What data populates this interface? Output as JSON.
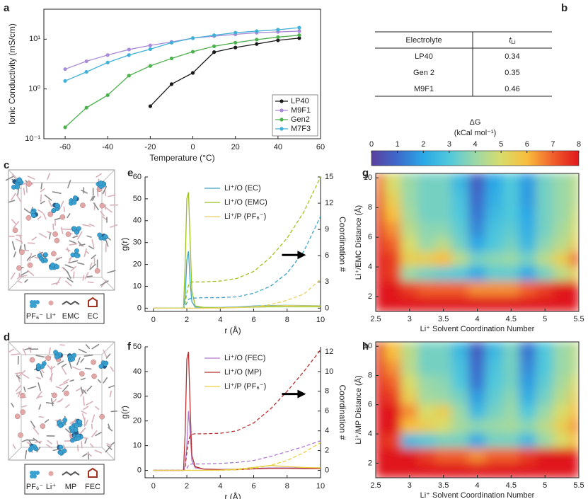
{
  "chart_data": [
    {
      "type": "line",
      "panel_label": "a",
      "xlabel": "Temperature (°C)",
      "ylabel": "Ionic Conductivity (mS/cm)",
      "x": [
        -60,
        -50,
        -40,
        -30,
        -20,
        -10,
        0,
        10,
        20,
        30,
        40,
        50
      ],
      "xlim": [
        -70,
        60
      ],
      "xticks": [
        -60,
        -40,
        -20,
        0,
        20,
        40,
        60
      ],
      "yscale": "log",
      "ylim": [
        0.1,
        40
      ],
      "yticks": [
        {
          "value": 0.1,
          "label": "10⁻¹"
        },
        {
          "value": 1,
          "label": "10⁰"
        },
        {
          "value": 10,
          "label": "10¹"
        }
      ],
      "markers": true,
      "legend": "lower right",
      "series": [
        {
          "name": "LP40",
          "color": "#1a1a1a",
          "values": [
            null,
            null,
            null,
            null,
            0.45,
            1.25,
            2.1,
            5.5,
            6.8,
            8,
            9.5,
            10.5
          ]
        },
        {
          "name": "M9F1",
          "color": "#a98ad8",
          "values": [
            2.5,
            3.6,
            4.8,
            6.2,
            7.5,
            8.8,
            10.5,
            11.5,
            12.5,
            13.5,
            14,
            14.5
          ]
        },
        {
          "name": "Gen2",
          "color": "#4cb04c",
          "values": [
            0.17,
            0.42,
            0.75,
            1.85,
            2.9,
            4.1,
            5.6,
            7.2,
            8.5,
            9.8,
            11,
            12
          ]
        },
        {
          "name": "M7F3",
          "color": "#3fb0d8",
          "values": [
            1.45,
            2.2,
            3.4,
            4.8,
            6.3,
            8.5,
            10.5,
            12,
            13.5,
            14.5,
            15.5,
            17
          ]
        }
      ]
    },
    {
      "type": "line",
      "panel_label": "e",
      "xlabel": "r (Å)",
      "ylabel": "g(r)",
      "y2label": "Coordination #",
      "x": [
        0,
        1,
        1.8,
        1.9,
        2,
        2.1,
        2.2,
        2.3,
        2.5,
        3,
        4,
        5,
        6,
        7,
        8,
        9,
        10
      ],
      "xlim": [
        -0.5,
        10
      ],
      "xticks": [
        0,
        2,
        4,
        6,
        8,
        10
      ],
      "ylim": [
        -1.5,
        60
      ],
      "yticks": [
        0,
        10,
        20,
        30,
        40,
        50,
        60
      ],
      "y2lim": [
        -0.375,
        15
      ],
      "y2ticks": [
        0,
        3,
        6,
        9,
        12,
        15
      ],
      "legend": "upper center",
      "series": [
        {
          "name": "Li⁺/O (EC)",
          "color": "#3ba3c4",
          "values": [
            0,
            0,
            0,
            5,
            22,
            26,
            12,
            3,
            0.5,
            0.3,
            0.3,
            0.5,
            1,
            1.2,
            1.3,
            1.2,
            1.1
          ]
        },
        {
          "name": "Li⁺/O (EMC)",
          "color": "#9cc21e",
          "values": [
            0,
            0,
            0,
            20,
            50,
            53,
            30,
            8,
            1,
            0.3,
            0.2,
            0.3,
            0.5,
            0.6,
            0.6,
            0.6,
            0.6
          ]
        },
        {
          "name": "Li⁺/P (PF₆⁻)",
          "color": "#e8d060",
          "values": [
            0,
            0,
            0,
            0,
            0,
            0,
            0,
            0,
            0,
            0,
            0.1,
            0.3,
            0.7,
            1,
            1.2,
            1.1,
            1
          ]
        },
        {
          "color": "#3ba3c4",
          "axis": "y2",
          "linestyle": "dashed",
          "values": [
            0,
            0,
            0,
            0.2,
            0.6,
            1,
            1.1,
            1.15,
            1.15,
            1.2,
            1.2,
            1.3,
            1.7,
            2.5,
            4,
            6.5,
            10.5
          ]
        },
        {
          "color": "#9cc21e",
          "axis": "y2",
          "linestyle": "dashed",
          "values": [
            0,
            0,
            0,
            0.5,
            1.8,
            2.6,
            2.9,
            3,
            3,
            3,
            3.1,
            3.4,
            4.2,
            5.8,
            8,
            11,
            15
          ]
        },
        {
          "color": "#e8d060",
          "axis": "y2",
          "linestyle": "dashed",
          "values": [
            0,
            0,
            0,
            0,
            0,
            0,
            0,
            0,
            0,
            0,
            0,
            0.05,
            0.15,
            0.4,
            0.9,
            1.6,
            3.3
          ]
        }
      ]
    },
    {
      "type": "line",
      "panel_label": "f",
      "xlabel": "r (Å)",
      "ylabel": "g(r)",
      "y2label": "Coordination #",
      "x": [
        0,
        1,
        1.8,
        1.9,
        2,
        2.1,
        2.2,
        2.3,
        2.5,
        3,
        4,
        5,
        6,
        7,
        8,
        9,
        10
      ],
      "xlim": [
        -0.5,
        10
      ],
      "xticks": [
        0,
        2,
        4,
        6,
        8,
        10
      ],
      "ylim": [
        -3,
        50
      ],
      "yticks": [
        0,
        10,
        20,
        30,
        40,
        50
      ],
      "y2lim": [
        -0.75,
        12.5
      ],
      "y2ticks": [
        0,
        2,
        4,
        6,
        8,
        10,
        12
      ],
      "legend": "upper center",
      "series": [
        {
          "name": "Li⁺/O (FEC)",
          "color": "#b07ad0",
          "values": [
            0,
            0,
            0,
            2,
            10,
            24,
            15,
            4,
            1,
            0.5,
            0.4,
            0.5,
            0.8,
            1,
            1,
            1,
            1
          ]
        },
        {
          "name": "Li⁺/O (MP)",
          "color": "#b83030",
          "values": [
            0,
            0,
            0,
            15,
            45,
            48,
            25,
            6,
            1.5,
            0.5,
            0.3,
            0.3,
            0.6,
            0.8,
            0.8,
            0.7,
            0.7
          ]
        },
        {
          "name": "Li⁺/P (PF₆⁻)",
          "color": "#e8d040",
          "values": [
            0,
            0,
            0,
            0,
            0,
            0,
            0,
            0,
            0,
            0,
            0.1,
            0.5,
            1.2,
            2,
            1.5,
            1.2,
            1
          ]
        },
        {
          "color": "#b07ad0",
          "axis": "y2",
          "linestyle": "dashed",
          "values": [
            0,
            0,
            0,
            0.05,
            0.2,
            0.5,
            0.6,
            0.65,
            0.65,
            0.65,
            0.7,
            0.8,
            1,
            1.4,
            1.9,
            2.4,
            3
          ]
        },
        {
          "color": "#b83030",
          "axis": "y2",
          "linestyle": "dashed",
          "values": [
            0,
            0,
            0,
            0.4,
            1.8,
            3,
            3.5,
            3.65,
            3.7,
            3.7,
            3.75,
            4,
            4.8,
            6.2,
            8,
            10,
            12.2
          ]
        },
        {
          "color": "#e8d040",
          "axis": "y2",
          "linestyle": "dashed",
          "values": [
            0,
            0,
            0,
            0,
            0,
            0,
            0,
            0,
            0,
            0,
            0,
            0.05,
            0.2,
            0.5,
            1,
            1.8,
            2.8
          ]
        }
      ]
    },
    {
      "type": "heatmap",
      "panel_label": "g",
      "xlabel": "Li⁺ Solvent Coordination Number",
      "ylabel": "Li⁺/EMC Distance (Å)",
      "xlim": [
        2.5,
        5.5
      ],
      "xticks": [
        2.5,
        3,
        3.5,
        4,
        4.5,
        5,
        5.5
      ],
      "ylim": [
        1,
        10.3
      ],
      "yticks": [
        2,
        4,
        6,
        8,
        10
      ],
      "clim": [
        0,
        8
      ],
      "colormap": [
        "#5b3f9e",
        "#3d6acc",
        "#2aa8e6",
        "#50c8dc",
        "#9ad8a8",
        "#d8dc6a",
        "#f8be3c",
        "#f0602c",
        "#e0181c"
      ],
      "colorbar": {
        "title": "ΔG",
        "unit": "(kCal mol⁻¹)",
        "ticks": [
          0,
          1,
          2,
          3,
          4,
          5,
          6,
          7,
          8
        ]
      },
      "x": [
        2.5,
        2.75,
        3,
        3.25,
        3.5,
        3.75,
        4,
        4.25,
        4.5,
        4.75,
        5,
        5.25,
        5.5
      ],
      "y": [
        9.5,
        8.5,
        7.5,
        6.5,
        5.5,
        4.5,
        3.5,
        2.5,
        1.5
      ],
      "values": [
        [
          7,
          5,
          4,
          3.5,
          3.5,
          2.5,
          0.8,
          2,
          3,
          1.8,
          3.5,
          4,
          4.5
        ],
        [
          7.5,
          5.5,
          4,
          3.5,
          3.5,
          2.8,
          1,
          2.2,
          3,
          1.8,
          3.5,
          4,
          4.5
        ],
        [
          8,
          6,
          4.2,
          3.5,
          3.5,
          3,
          1.2,
          2.5,
          3,
          2,
          3.5,
          4,
          4.8
        ],
        [
          8,
          6.5,
          4.5,
          3.8,
          3.8,
          3.2,
          1.5,
          2.8,
          3.2,
          2.2,
          3.5,
          4.2,
          5
        ],
        [
          8,
          7,
          5,
          4,
          4.5,
          3.5,
          2,
          3,
          3.5,
          2.5,
          3.8,
          4.5,
          5.5
        ],
        [
          8,
          7.5,
          5.5,
          5.5,
          6,
          4.5,
          3.5,
          3.8,
          4,
          3.5,
          4.5,
          5.5,
          7
        ],
        [
          8,
          7.5,
          4,
          3.5,
          3.2,
          3,
          2,
          3.2,
          3.2,
          2,
          3.5,
          4.5,
          5.5
        ],
        [
          8,
          8,
          7.5,
          7,
          7,
          7,
          6.5,
          6.5,
          6.5,
          7,
          7.5,
          8,
          8
        ],
        [
          8,
          8,
          8,
          8,
          8,
          8,
          8,
          8,
          8,
          8,
          8,
          8,
          8
        ]
      ]
    },
    {
      "type": "heatmap",
      "panel_label": "h",
      "xlabel": "Li⁺ Solvent Coordination Number",
      "ylabel": "Li⁺/MP Distance (Å)",
      "xlim": [
        2.5,
        5.5
      ],
      "xticks": [
        2.5,
        3,
        3.5,
        4,
        4.5,
        5,
        5.5
      ],
      "ylim": [
        1,
        10.3
      ],
      "yticks": [
        2,
        4,
        6,
        8,
        10
      ],
      "clim": [
        0,
        8
      ],
      "colormap": [
        "#5b3f9e",
        "#3d6acc",
        "#2aa8e6",
        "#50c8dc",
        "#9ad8a8",
        "#d8dc6a",
        "#f8be3c",
        "#f0602c",
        "#e0181c"
      ],
      "x": [
        2.5,
        2.75,
        3,
        3.25,
        3.5,
        3.75,
        4,
        4.25,
        4.5,
        4.75,
        5,
        5.25,
        5.5
      ],
      "y": [
        9.5,
        8.5,
        7.5,
        6.5,
        5.5,
        4.5,
        3.5,
        2.5,
        1.5
      ],
      "values": [
        [
          8,
          6,
          4.5,
          3.5,
          3.5,
          2.5,
          0.8,
          2.5,
          3.5,
          1.2,
          3,
          4,
          4.5
        ],
        [
          8,
          6.5,
          4.5,
          3.5,
          3.5,
          2.8,
          1,
          2.8,
          3.5,
          1.5,
          3,
          4,
          4.5
        ],
        [
          8,
          7,
          5,
          4,
          3.8,
          3,
          1.2,
          3,
          3.5,
          1.8,
          3.2,
          4.2,
          5
        ],
        [
          8,
          7.5,
          5.5,
          4.2,
          4,
          3.5,
          1.8,
          3.2,
          3.8,
          2.2,
          3.5,
          4.5,
          5.5
        ],
        [
          8,
          8,
          6.5,
          5,
          5.5,
          4,
          2.5,
          3.5,
          4,
          3,
          4,
          5,
          6
        ],
        [
          8,
          8,
          6,
          5.5,
          5,
          4.2,
          3.8,
          4,
          4.2,
          3.8,
          4.5,
          5.5,
          6.5
        ],
        [
          8,
          7.5,
          2.5,
          3,
          3.5,
          3.5,
          2,
          3.5,
          3.5,
          2.5,
          4,
          5,
          6
        ],
        [
          8,
          8,
          8,
          7.5,
          7,
          7,
          6.5,
          7,
          7,
          7.5,
          8,
          8,
          8
        ],
        [
          8,
          8,
          8,
          8,
          8,
          8,
          8,
          8,
          8,
          8,
          8,
          8,
          8
        ]
      ]
    }
  ],
  "table": {
    "panel_label": "b",
    "header": [
      "Electrolyte",
      {
        "symbol": "t",
        "subscript": "Li"
      }
    ],
    "rows": [
      [
        "LP40",
        "0.34"
      ],
      [
        "Gen 2",
        "0.35"
      ],
      [
        "M9F1",
        "0.46"
      ]
    ]
  },
  "snapshots": [
    {
      "panel_label": "c",
      "legend": [
        "PF₆⁻",
        "Li⁺",
        "EMC",
        "EC"
      ]
    },
    {
      "panel_label": "d",
      "legend": [
        "PF₆⁻",
        "Li⁺",
        "MP",
        "FEC"
      ]
    }
  ]
}
